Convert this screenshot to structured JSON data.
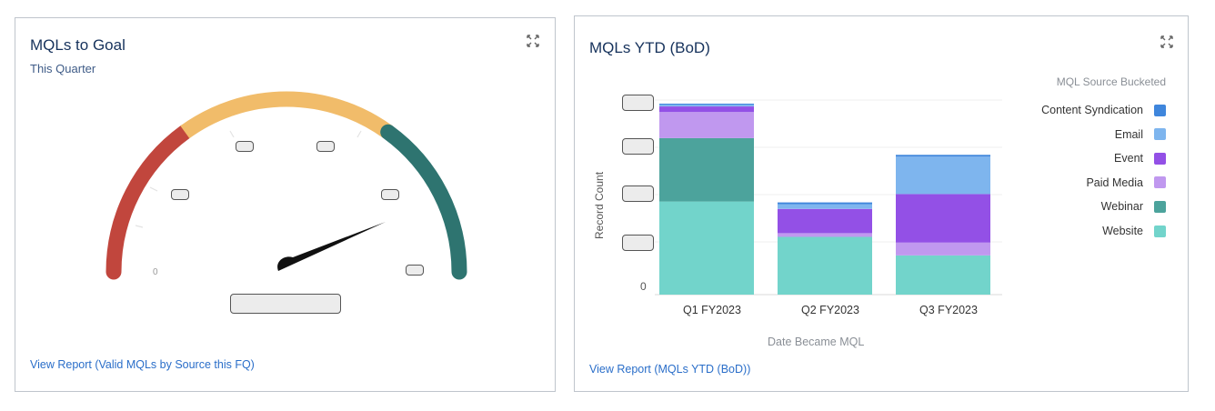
{
  "gauge_card": {
    "title": "MQLs to Goal",
    "subtitle": "This Quarter",
    "zero_label": "0",
    "view_report": "View Report (Valid MQLs by Source this FQ)",
    "bands": [
      {
        "name": "low",
        "color": "#c1463d"
      },
      {
        "name": "mid",
        "color": "#f1bc6a"
      },
      {
        "name": "high",
        "color": "#2e7470"
      }
    ],
    "needle_color": "#111111",
    "expand_icon": "expand-arrows-icon"
  },
  "bar_card": {
    "title": "MQLs YTD (BoD)",
    "view_report": "View Report (MQLs YTD (BoD))",
    "expand_icon": "expand-arrows-icon"
  },
  "chart_data": {
    "type": "bar",
    "stacked": true,
    "title": "MQLs YTD (BoD)",
    "xlabel": "Date Became MQL",
    "ylabel": "Record Count",
    "y_tick_labels": [
      "0"
    ],
    "categories": [
      "Q1 FY2023",
      "Q2 FY2023",
      "Q3 FY2023"
    ],
    "legend_title": "MQL Source Bucketed",
    "legend_position": "right",
    "grid": true,
    "series": [
      {
        "name": "Website",
        "color": "#72d4cb",
        "values": [
          100,
          62,
          42
        ]
      },
      {
        "name": "Webinar",
        "color": "#4ca39c",
        "values": [
          68,
          0,
          0
        ]
      },
      {
        "name": "Paid Media",
        "color": "#c098ef",
        "values": [
          28,
          4,
          14
        ]
      },
      {
        "name": "Event",
        "color": "#9350e6",
        "values": [
          6,
          26,
          52
        ]
      },
      {
        "name": "Email",
        "color": "#7eb5ee",
        "values": [
          2,
          5,
          40
        ]
      },
      {
        "name": "Content Syndication",
        "color": "#3f86dc",
        "values": [
          1,
          2,
          2
        ]
      }
    ]
  }
}
